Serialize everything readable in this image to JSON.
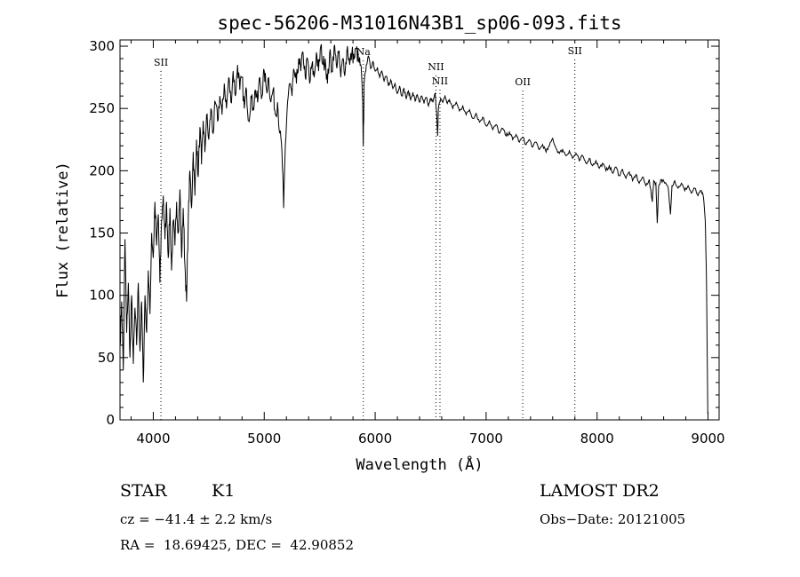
{
  "chart_data": {
    "type": "line",
    "title": "spec-56206-M31016N43B1_sp06-093.fits",
    "xlabel": "Wavelength (Å)",
    "ylabel": "Flux (relative)",
    "xlim": [
      3700,
      9100
    ],
    "ylim": [
      0,
      305
    ],
    "xticks": [
      4000,
      5000,
      6000,
      7000,
      8000,
      9000
    ],
    "yticks": [
      0,
      50,
      100,
      150,
      200,
      250,
      300
    ],
    "grid": false,
    "line_color": "#000000",
    "series": [
      {
        "values": [
          [
            3700,
            60
          ],
          [
            3715,
            95
          ],
          [
            3730,
            40
          ],
          [
            3745,
            145
          ],
          [
            3760,
            70
          ],
          [
            3775,
            110
          ],
          [
            3790,
            50
          ],
          [
            3805,
            100
          ],
          [
            3820,
            45
          ],
          [
            3835,
            90
          ],
          [
            3850,
            60
          ],
          [
            3865,
            110
          ],
          [
            3880,
            55
          ],
          [
            3895,
            95
          ],
          [
            3910,
            30
          ],
          [
            3925,
            100
          ],
          [
            3940,
            70
          ],
          [
            3955,
            120
          ],
          [
            3970,
            85
          ],
          [
            3985,
            150
          ],
          [
            4000,
            130
          ],
          [
            4015,
            175
          ],
          [
            4030,
            140
          ],
          [
            4045,
            165
          ],
          [
            4060,
            110
          ],
          [
            4075,
            160
          ],
          [
            4090,
            180
          ],
          [
            4105,
            145
          ],
          [
            4120,
            175
          ],
          [
            4135,
            130
          ],
          [
            4150,
            170
          ],
          [
            4165,
            120
          ],
          [
            4180,
            160
          ],
          [
            4195,
            140
          ],
          [
            4210,
            175
          ],
          [
            4225,
            150
          ],
          [
            4240,
            185
          ],
          [
            4255,
            130
          ],
          [
            4270,
            170
          ],
          [
            4285,
            125
          ],
          [
            4300,
            95
          ],
          [
            4315,
            160
          ],
          [
            4330,
            200
          ],
          [
            4345,
            170
          ],
          [
            4360,
            215
          ],
          [
            4375,
            180
          ],
          [
            4390,
            225
          ],
          [
            4405,
            195
          ],
          [
            4420,
            235
          ],
          [
            4435,
            205
          ],
          [
            4450,
            240
          ],
          [
            4465,
            215
          ],
          [
            4480,
            245
          ],
          [
            4500,
            225
          ],
          [
            4520,
            250
          ],
          [
            4540,
            230
          ],
          [
            4560,
            255
          ],
          [
            4580,
            240
          ],
          [
            4600,
            260
          ],
          [
            4620,
            245
          ],
          [
            4640,
            270
          ],
          [
            4660,
            250
          ],
          [
            4680,
            275
          ],
          [
            4700,
            255
          ],
          [
            4720,
            280
          ],
          [
            4740,
            260
          ],
          [
            4760,
            285
          ],
          [
            4780,
            265
          ],
          [
            4800,
            275
          ],
          [
            4820,
            250
          ],
          [
            4840,
            265
          ],
          [
            4860,
            240
          ],
          [
            4880,
            260
          ],
          [
            4900,
            250
          ],
          [
            4920,
            265
          ],
          [
            4940,
            255
          ],
          [
            4960,
            275
          ],
          [
            4980,
            260
          ],
          [
            5000,
            280
          ],
          [
            5020,
            265
          ],
          [
            5040,
            275
          ],
          [
            5060,
            255
          ],
          [
            5080,
            265
          ],
          [
            5100,
            245
          ],
          [
            5120,
            255
          ],
          [
            5140,
            230
          ],
          [
            5160,
            215
          ],
          [
            5175,
            170
          ],
          [
            5190,
            220
          ],
          [
            5210,
            255
          ],
          [
            5230,
            270
          ],
          [
            5250,
            260
          ],
          [
            5270,
            280
          ],
          [
            5290,
            270
          ],
          [
            5310,
            290
          ],
          [
            5330,
            280
          ],
          [
            5350,
            295
          ],
          [
            5370,
            275
          ],
          [
            5390,
            290
          ],
          [
            5410,
            270
          ],
          [
            5430,
            285
          ],
          [
            5450,
            275
          ],
          [
            5470,
            295
          ],
          [
            5490,
            280
          ],
          [
            5510,
            300
          ],
          [
            5530,
            285
          ],
          [
            5550,
            290
          ],
          [
            5570,
            270
          ],
          [
            5590,
            295
          ],
          [
            5610,
            280
          ],
          [
            5630,
            300
          ],
          [
            5650,
            285
          ],
          [
            5670,
            295
          ],
          [
            5690,
            275
          ],
          [
            5710,
            290
          ],
          [
            5730,
            280
          ],
          [
            5750,
            300
          ],
          [
            5770,
            285
          ],
          [
            5790,
            295
          ],
          [
            5810,
            290
          ],
          [
            5830,
            298
          ],
          [
            5850,
            288
          ],
          [
            5870,
            285
          ],
          [
            5885,
            260
          ],
          [
            5893,
            220
          ],
          [
            5900,
            270
          ],
          [
            5920,
            285
          ],
          [
            5940,
            292
          ],
          [
            5960,
            282
          ],
          [
            5980,
            288
          ],
          [
            6000,
            280
          ],
          [
            6020,
            283
          ],
          [
            6040,
            275
          ],
          [
            6060,
            280
          ],
          [
            6080,
            272
          ],
          [
            6100,
            276
          ],
          [
            6120,
            268
          ],
          [
            6140,
            273
          ],
          [
            6160,
            266
          ],
          [
            6180,
            270
          ],
          [
            6200,
            262
          ],
          [
            6220,
            268
          ],
          [
            6240,
            260
          ],
          [
            6260,
            266
          ],
          [
            6280,
            258
          ],
          [
            6300,
            264
          ],
          [
            6320,
            257
          ],
          [
            6340,
            263
          ],
          [
            6360,
            256
          ],
          [
            6380,
            261
          ],
          [
            6400,
            255
          ],
          [
            6420,
            260
          ],
          [
            6440,
            254
          ],
          [
            6460,
            259
          ],
          [
            6480,
            252
          ],
          [
            6500,
            258
          ],
          [
            6520,
            255
          ],
          [
            6540,
            262
          ],
          [
            6555,
            245
          ],
          [
            6563,
            228
          ],
          [
            6570,
            250
          ],
          [
            6590,
            258
          ],
          [
            6610,
            255
          ],
          [
            6630,
            260
          ],
          [
            6650,
            254
          ],
          [
            6670,
            257
          ],
          [
            6700,
            250
          ],
          [
            6730,
            255
          ],
          [
            6760,
            248
          ],
          [
            6790,
            252
          ],
          [
            6820,
            245
          ],
          [
            6850,
            249
          ],
          [
            6880,
            242
          ],
          [
            6910,
            246
          ],
          [
            6940,
            239
          ],
          [
            6970,
            243
          ],
          [
            7000,
            236
          ],
          [
            7030,
            240
          ],
          [
            7060,
            233
          ],
          [
            7090,
            237
          ],
          [
            7120,
            230
          ],
          [
            7150,
            234
          ],
          [
            7180,
            228
          ],
          [
            7210,
            231
          ],
          [
            7240,
            225
          ],
          [
            7270,
            229
          ],
          [
            7300,
            223
          ],
          [
            7330,
            227
          ],
          [
            7360,
            221
          ],
          [
            7390,
            225
          ],
          [
            7420,
            219
          ],
          [
            7450,
            223
          ],
          [
            7480,
            217
          ],
          [
            7510,
            221
          ],
          [
            7540,
            215
          ],
          [
            7570,
            220
          ],
          [
            7600,
            226
          ],
          [
            7630,
            218
          ],
          [
            7660,
            214
          ],
          [
            7690,
            217
          ],
          [
            7720,
            212
          ],
          [
            7750,
            216
          ],
          [
            7780,
            210
          ],
          [
            7810,
            214
          ],
          [
            7840,
            208
          ],
          [
            7870,
            212
          ],
          [
            7900,
            206
          ],
          [
            7930,
            210
          ],
          [
            7960,
            204
          ],
          [
            7990,
            208
          ],
          [
            8020,
            202
          ],
          [
            8050,
            206
          ],
          [
            8080,
            200
          ],
          [
            8110,
            204
          ],
          [
            8140,
            198
          ],
          [
            8170,
            203
          ],
          [
            8200,
            196
          ],
          [
            8230,
            201
          ],
          [
            8260,
            194
          ],
          [
            8290,
            199
          ],
          [
            8320,
            192
          ],
          [
            8350,
            197
          ],
          [
            8380,
            190
          ],
          [
            8410,
            195
          ],
          [
            8440,
            188
          ],
          [
            8470,
            193
          ],
          [
            8498,
            175
          ],
          [
            8510,
            192
          ],
          [
            8530,
            190
          ],
          [
            8542,
            158
          ],
          [
            8555,
            188
          ],
          [
            8580,
            193
          ],
          [
            8610,
            190
          ],
          [
            8640,
            187
          ],
          [
            8662,
            165
          ],
          [
            8675,
            188
          ],
          [
            8700,
            192
          ],
          [
            8730,
            186
          ],
          [
            8760,
            190
          ],
          [
            8790,
            184
          ],
          [
            8820,
            188
          ],
          [
            8850,
            182
          ],
          [
            8880,
            186
          ],
          [
            8910,
            180
          ],
          [
            8940,
            184
          ],
          [
            8960,
            178
          ],
          [
            8975,
            160
          ],
          [
            8985,
            120
          ],
          [
            8992,
            60
          ],
          [
            8998,
            5
          ]
        ]
      }
    ],
    "line_markers": [
      {
        "label": "SII",
        "x": 4069
      },
      {
        "label": "Na",
        "x": 5893
      },
      {
        "label": "NII",
        "x": 6548
      },
      {
        "label": "NII",
        "x": 6584
      },
      {
        "label": "OII",
        "x": 7330
      },
      {
        "label": "SII",
        "x": 7800
      }
    ]
  },
  "info": {
    "object_class": "STAR",
    "subclass": "K1",
    "survey": "LAMOST DR2",
    "redshift_line": "cz = −41.4 ± 2.2 km/s",
    "obs_date_line": "Obs−Date: 20121005",
    "coords_line": "RA =  18.69425, DEC =  42.90852"
  }
}
